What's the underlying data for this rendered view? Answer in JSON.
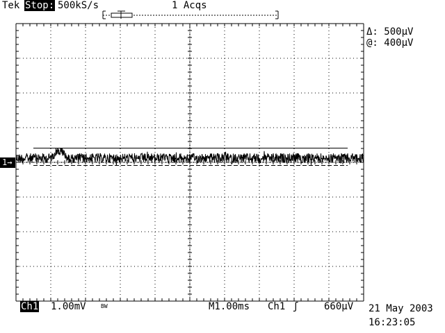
{
  "header": {
    "brand": "Tek",
    "run_state": "Stop:",
    "sample_rate": "500kS/s",
    "acquisitions": "1 Acqs"
  },
  "cursor_readout": {
    "delta": "Δ: 500µV",
    "at": "@: 400µV"
  },
  "channel_marker": "1",
  "footer": {
    "channel": "Ch1",
    "volts_per_div": "1.00mV",
    "bandwidth_limit": "BW",
    "timebase": "M1.00ms",
    "trigger_source": "Ch1",
    "trigger_level": "660µV",
    "date": "21 May 2003",
    "time": "16:23:05"
  },
  "colors": {
    "background": "#ffffff",
    "trace": "#000000",
    "grid": "#000000"
  },
  "graticule": {
    "divisions_x": 10,
    "divisions_y": 8,
    "minor_ticks_per_div": 5
  },
  "signal": {
    "type": "noise-trace",
    "bandwidth_limited": true
  }
}
